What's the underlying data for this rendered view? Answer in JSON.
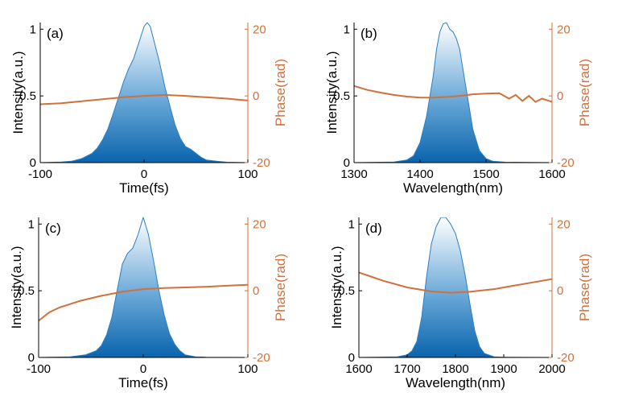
{
  "colors": {
    "intensity_dark": "#0a64ad",
    "intensity_light": "#ffffff",
    "intensity_line": "#2a7fc4",
    "phase": "#d0703a",
    "axis": "#000000"
  },
  "chart_data": [
    {
      "type": "area",
      "panel_label": "(a)",
      "xlabel": "Time(fs)",
      "ylabel": "Intensity(a.u.)",
      "y2label": "Phase(rad)",
      "xlim": [
        -100,
        100
      ],
      "ylim": [
        0,
        1.05
      ],
      "y2lim": [
        -20,
        22
      ],
      "xticks": [
        -100,
        0,
        100
      ],
      "yticks": [
        0,
        0.5,
        1
      ],
      "y2ticks": [
        -20,
        0,
        20
      ],
      "series": [
        {
          "role": "intensity",
          "x": [
            -100,
            -80,
            -70,
            -60,
            -50,
            -45,
            -40,
            -35,
            -30,
            -25,
            -20,
            -15,
            -10,
            -5,
            0,
            3,
            6,
            10,
            15,
            20,
            25,
            30,
            35,
            40,
            45,
            50,
            55,
            60,
            70,
            80,
            100
          ],
          "y": [
            0,
            0.005,
            0.01,
            0.03,
            0.07,
            0.11,
            0.17,
            0.25,
            0.36,
            0.48,
            0.6,
            0.7,
            0.78,
            0.9,
            1.02,
            1.05,
            1.02,
            0.9,
            0.75,
            0.57,
            0.42,
            0.28,
            0.18,
            0.12,
            0.1,
            0.07,
            0.04,
            0.02,
            0.01,
            0.003,
            0
          ]
        },
        {
          "role": "phase",
          "x": [
            -100,
            -80,
            -60,
            -40,
            -20,
            0,
            20,
            40,
            60,
            80,
            100
          ],
          "y": [
            -2.5,
            -2.2,
            -1.6,
            -1.0,
            -0.4,
            0.0,
            0.3,
            0.0,
            -0.4,
            -0.8,
            -1.4
          ]
        }
      ]
    },
    {
      "type": "area",
      "panel_label": "(b)",
      "xlabel": "Wavelength(nm)",
      "ylabel": "Intensity(a.u.)",
      "y2label": "Phase(rad)",
      "xlim": [
        1300,
        1600
      ],
      "ylim": [
        0,
        1.05
      ],
      "y2lim": [
        -20,
        22
      ],
      "xticks": [
        1300,
        1400,
        1500,
        1600
      ],
      "yticks": [
        0,
        0.5,
        1
      ],
      "y2ticks": [
        -20,
        0,
        20
      ],
      "series": [
        {
          "role": "intensity",
          "x": [
            1300,
            1360,
            1380,
            1390,
            1400,
            1410,
            1420,
            1425,
            1430,
            1435,
            1440,
            1445,
            1450,
            1455,
            1460,
            1470,
            1480,
            1490,
            1500,
            1510,
            1530,
            1600
          ],
          "y": [
            0,
            0.005,
            0.02,
            0.05,
            0.15,
            0.35,
            0.65,
            0.85,
            0.98,
            1.04,
            1.05,
            1.0,
            0.98,
            0.93,
            0.85,
            0.55,
            0.25,
            0.09,
            0.03,
            0.01,
            0.003,
            0
          ]
        },
        {
          "role": "phase",
          "x": [
            1300,
            1320,
            1340,
            1360,
            1380,
            1400,
            1420,
            1440,
            1460,
            1480,
            1500,
            1520,
            1535,
            1545,
            1555,
            1565,
            1575,
            1585,
            1600
          ],
          "y": [
            3.0,
            1.8,
            1.0,
            0.3,
            -0.2,
            -0.5,
            -0.5,
            -0.3,
            0.0,
            0.5,
            0.7,
            0.8,
            -0.8,
            0.3,
            -1.5,
            0.0,
            -1.8,
            -0.8,
            -1.8
          ]
        }
      ]
    },
    {
      "type": "area",
      "panel_label": "(c)",
      "xlabel": "Time(fs)",
      "ylabel": "Intensity(a.u.)",
      "y2label": "Phase(rad)",
      "xlim": [
        -100,
        100
      ],
      "ylim": [
        0,
        1.05
      ],
      "y2lim": [
        -20,
        22
      ],
      "xticks": [
        -100,
        0,
        100
      ],
      "yticks": [
        0,
        0.5,
        1
      ],
      "y2ticks": [
        -20,
        0,
        20
      ],
      "series": [
        {
          "role": "intensity",
          "x": [
            -100,
            -70,
            -55,
            -45,
            -40,
            -35,
            -30,
            -25,
            -20,
            -15,
            -10,
            -5,
            0,
            5,
            10,
            15,
            20,
            25,
            30,
            35,
            40,
            50,
            60,
            100
          ],
          "y": [
            0,
            0.005,
            0.02,
            0.05,
            0.09,
            0.17,
            0.3,
            0.5,
            0.7,
            0.78,
            0.82,
            0.92,
            1.05,
            0.92,
            0.72,
            0.5,
            0.32,
            0.18,
            0.1,
            0.05,
            0.02,
            0.005,
            0.002,
            0
          ]
        },
        {
          "role": "phase",
          "x": [
            -100,
            -90,
            -80,
            -60,
            -40,
            -20,
            0,
            20,
            40,
            60,
            80,
            100
          ],
          "y": [
            -9.0,
            -6.5,
            -5.0,
            -3.0,
            -1.5,
            -0.3,
            0.5,
            0.8,
            1.0,
            1.2,
            1.5,
            1.8
          ]
        }
      ]
    },
    {
      "type": "area",
      "panel_label": "(d)",
      "xlabel": "Wavelength(nm)",
      "ylabel": "Intensity(a.u.)",
      "y2label": "Phase(rad)",
      "xlim": [
        1600,
        2000
      ],
      "ylim": [
        0,
        1.05
      ],
      "y2lim": [
        -20,
        22
      ],
      "xticks": [
        1600,
        1700,
        1800,
        1900,
        2000
      ],
      "yticks": [
        0,
        0.5,
        1
      ],
      "y2ticks": [
        -20,
        0,
        20
      ],
      "series": [
        {
          "role": "intensity",
          "x": [
            1600,
            1680,
            1700,
            1710,
            1720,
            1730,
            1740,
            1750,
            1760,
            1770,
            1780,
            1790,
            1800,
            1810,
            1820,
            1830,
            1840,
            1850,
            1860,
            1880,
            1900,
            2000
          ],
          "y": [
            0,
            0.005,
            0.02,
            0.05,
            0.12,
            0.3,
            0.6,
            0.85,
            0.98,
            1.05,
            1.05,
            1.0,
            0.93,
            0.8,
            0.62,
            0.4,
            0.2,
            0.08,
            0.03,
            0.005,
            0.002,
            0
          ]
        },
        {
          "role": "phase",
          "x": [
            1600,
            1620,
            1650,
            1700,
            1750,
            1790,
            1830,
            1880,
            1920,
            1960,
            2000
          ],
          "y": [
            5.5,
            4.5,
            3.0,
            1.0,
            -0.2,
            -0.6,
            -0.3,
            0.5,
            1.5,
            2.5,
            3.5
          ]
        }
      ]
    }
  ]
}
